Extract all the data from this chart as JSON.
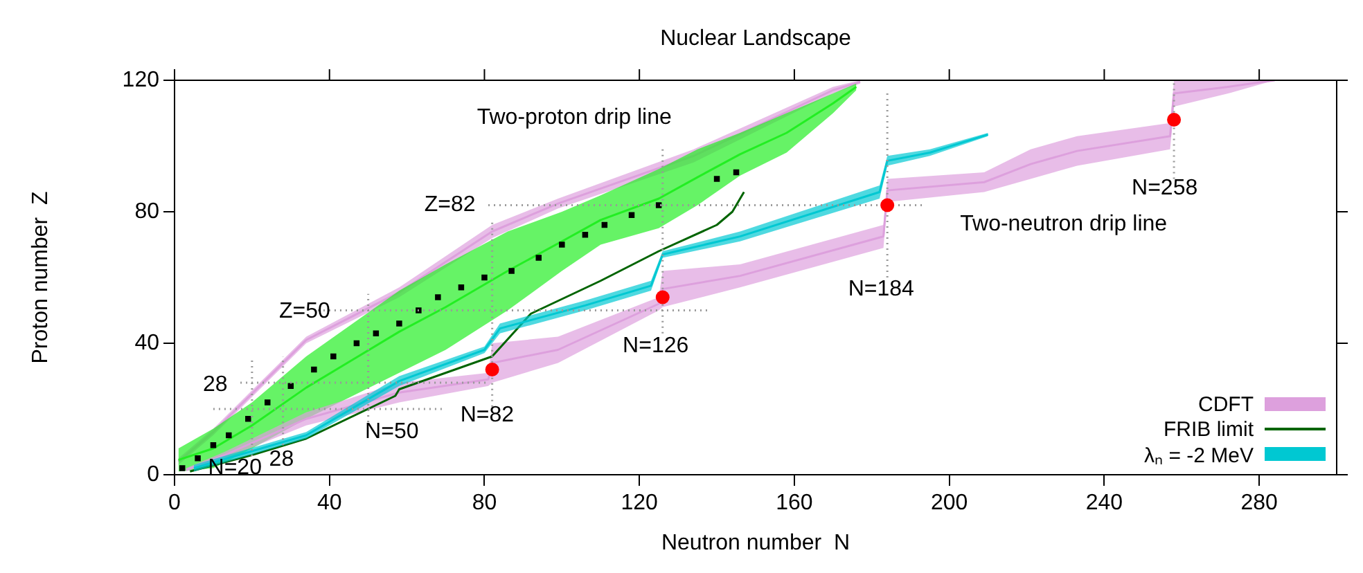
{
  "chart_data": {
    "type": "scatter",
    "title": "Nuclear Landscape",
    "xlabel": "Neutron number  N",
    "ylabel": "Proton number  Z",
    "xlim": [
      0,
      300
    ],
    "xticks": [
      0,
      40,
      80,
      120,
      160,
      200,
      240,
      280
    ],
    "ylim": [
      0,
      120
    ],
    "yticks": [
      0,
      40,
      80,
      120
    ],
    "legend": "bottom right",
    "grid": false,
    "series": [
      {
        "type": "line",
        "color": "#dda0dd",
        "marker": "none",
        "x": [
          1,
          10,
          34,
          58,
          82,
          99,
          134,
          170,
          177
        ],
        "values": [
          4,
          13,
          41,
          55.5,
          74,
          82.5,
          97,
          117,
          119.5
        ],
        "lower": [
          3,
          12,
          40,
          54,
          72,
          81,
          95,
          116,
          119
        ],
        "upper": [
          5,
          14,
          42,
          57,
          76,
          84,
          99,
          118,
          120
        ]
      },
      {
        "type": "line",
        "color": "#22ee22",
        "marker": "none",
        "x": [
          1,
          10,
          20,
          34,
          46,
          58,
          70,
          86,
          100,
          110,
          125,
          135,
          146,
          158,
          170,
          176
        ],
        "values": [
          4.5,
          8,
          15,
          26.5,
          35,
          43.5,
          51,
          62,
          71,
          77.5,
          84,
          90.5,
          97.5,
          104,
          113,
          118
        ],
        "lower": [
          1,
          2,
          8,
          17,
          24,
          31,
          38,
          50,
          62,
          70,
          75,
          82,
          91,
          98,
          110,
          117
        ],
        "upper": [
          8,
          14,
          22,
          36,
          46,
          56,
          64,
          74,
          80,
          85,
          93,
          99,
          104,
          110,
          116,
          119
        ]
      },
      {
        "color": "#000000",
        "marker": "square",
        "x": [
          2,
          6,
          10,
          14,
          19,
          24,
          30,
          36,
          41,
          47,
          52,
          58,
          63,
          68,
          74,
          80,
          87,
          94,
          100,
          106,
          111,
          118,
          125,
          140,
          145
        ],
        "values": [
          2,
          5,
          9,
          12,
          17,
          22,
          27,
          32,
          36,
          40,
          43,
          46,
          50,
          54,
          57,
          60,
          62,
          66,
          70,
          73,
          76,
          79,
          82,
          90,
          92
        ]
      },
      {
        "type": "line",
        "name": "CDFT",
        "color": "#dda0dd",
        "marker": "none",
        "x": [
          3,
          13,
          34,
          58,
          81,
          82,
          99,
          125,
          126,
          146,
          183,
          184,
          209,
          221,
          233,
          257,
          258,
          272,
          284
        ],
        "values": [
          1.5,
          6,
          17,
          25,
          29,
          34,
          38,
          52,
          56.5,
          60.5,
          72.5,
          86.5,
          89,
          94.5,
          98.5,
          103,
          116,
          118,
          120
        ],
        "lower": [
          1,
          5,
          15,
          22,
          27,
          28,
          34,
          50,
          51,
          57,
          69,
          83,
          86,
          90,
          94,
          99,
          112,
          116,
          120
        ],
        "upper": [
          2,
          7,
          19,
          28,
          31,
          40,
          42,
          54,
          62,
          64,
          76,
          90,
          92,
          99,
          103,
          107,
          120,
          120,
          120
        ]
      },
      {
        "type": "line",
        "name": "FRIB limit",
        "color": "#006400",
        "line_style": "solid",
        "marker": "none",
        "x": [
          4,
          20,
          34,
          57,
          58,
          82,
          92,
          110,
          125,
          140,
          144,
          147
        ],
        "values": [
          1,
          6,
          11,
          24,
          26,
          36,
          49,
          59,
          68,
          76,
          80,
          86
        ]
      },
      {
        "type": "line",
        "name": "λₙ = -2 MeV",
        "color": "#00c8d2",
        "marker": "none",
        "x": [
          5,
          34,
          58,
          80,
          84,
          106,
          123,
          126,
          146,
          182,
          184,
          195,
          210
        ],
        "values": [
          2,
          12,
          28.5,
          38,
          44.5,
          51.5,
          57.5,
          67,
          72.5,
          86,
          95.5,
          98,
          103.5
        ],
        "lower": [
          1,
          11,
          27,
          37,
          43,
          50,
          56,
          66,
          71,
          84,
          94,
          97,
          103
        ],
        "upper": [
          3,
          13,
          30,
          39,
          46,
          53,
          59,
          68,
          74,
          88,
          97,
          99,
          104
        ]
      },
      {
        "type": "line",
        "color": "#999999",
        "line_style": "dotted",
        "marker": "none",
        "x": [
          81,
          193
        ],
        "values": [
          82,
          82
        ]
      },
      {
        "type": "line",
        "color": "#999999",
        "line_style": "dotted",
        "marker": "none",
        "x": [
          37,
          138
        ],
        "values": [
          50,
          50
        ]
      },
      {
        "type": "line",
        "color": "#999999",
        "line_style": "dotted",
        "marker": "none",
        "x": [
          17,
          81
        ],
        "values": [
          28,
          28
        ]
      },
      {
        "type": "line",
        "color": "#999999",
        "line_style": "dotted",
        "marker": "none",
        "x": [
          10,
          69
        ],
        "values": [
          20,
          20
        ]
      },
      {
        "type": "line",
        "color": "#999999",
        "line_style": "dotted",
        "marker": "none",
        "x": [
          82,
          82
        ],
        "values": [
          19,
          77
        ]
      },
      {
        "type": "line",
        "color": "#999999",
        "line_style": "dotted",
        "marker": "none",
        "x": [
          50,
          50
        ],
        "values": [
          16,
          55
        ]
      },
      {
        "type": "line",
        "color": "#999999",
        "line_style": "dotted",
        "marker": "none",
        "x": [
          28,
          28
        ],
        "values": [
          9,
          36
        ]
      },
      {
        "type": "line",
        "color": "#999999",
        "line_style": "dotted",
        "marker": "none",
        "x": [
          20,
          20
        ],
        "values": [
          4,
          35
        ]
      },
      {
        "type": "line",
        "color": "#999999",
        "line_style": "dotted",
        "marker": "none",
        "x": [
          126,
          126
        ],
        "values": [
          43,
          100
        ]
      },
      {
        "type": "line",
        "color": "#999999",
        "line_style": "dotted",
        "marker": "none",
        "x": [
          184,
          184
        ],
        "values": [
          60,
          117
        ]
      },
      {
        "type": "line",
        "color": "#999999",
        "line_style": "dotted",
        "marker": "none",
        "x": [
          258,
          258
        ],
        "values": [
          90,
          120
        ]
      },
      {
        "type": "scatter",
        "color": "#ff0000",
        "marker": "circle",
        "x": [
          82,
          126,
          184,
          258
        ],
        "values": [
          32,
          54,
          82,
          108
        ]
      }
    ],
    "annotations": [
      "Two-proton drip line",
      "Two-neutron drip line",
      "Z=82",
      "Z=50",
      "28",
      "28",
      "N=20",
      "N=50",
      "N=82",
      "N=126",
      "N=184",
      "N=258"
    ]
  }
}
